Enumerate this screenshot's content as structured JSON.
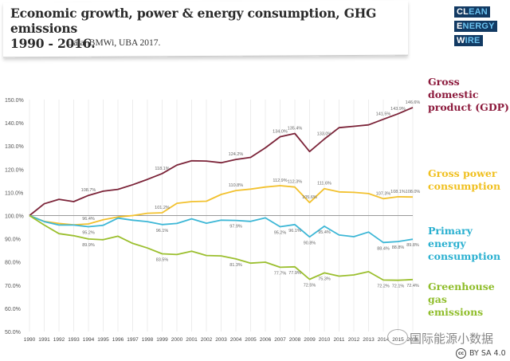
{
  "header": {
    "title_line1": "Economic growth, power & energy consumption, GHG emissions",
    "title_line2": "1990 - 2016.",
    "source": "Data: BMWi, UBA 2017.",
    "logo": [
      {
        "bold": "CL",
        "light": "EAN"
      },
      {
        "bold": "E",
        "light": "NERGY"
      },
      {
        "bold": "W",
        "light": "IRE"
      }
    ]
  },
  "watermark": "国际能源小数据",
  "license": "BY SA 4.0",
  "license_icon": "cc-icon",
  "chart_data": {
    "type": "line",
    "title": "Economic growth, power & energy consumption, GHG emissions 1990 - 2016.",
    "xlabel": "",
    "ylabel": "",
    "x": [
      1990,
      1991,
      1992,
      1993,
      1994,
      1995,
      1996,
      1997,
      1998,
      1999,
      2000,
      2001,
      2002,
      2003,
      2004,
      2005,
      2006,
      2007,
      2008,
      2009,
      2010,
      2011,
      2012,
      2013,
      2014,
      2015,
      2016
    ],
    "x_tick_labels": [
      "1990",
      "1991",
      "1992",
      "1993",
      "1994",
      "1995",
      "1996",
      "1997",
      "1998",
      "1999",
      "2000",
      "2001",
      "2002",
      "2003",
      "2004",
      "2005",
      "2006",
      "2007",
      "2008",
      "2009",
      "2010",
      "2011",
      "2012",
      "2013",
      "2014",
      "2015",
      "2016"
    ],
    "ylim": [
      50,
      150
    ],
    "y_ticks": [
      50,
      60,
      70,
      80,
      90,
      100,
      110,
      120,
      130,
      140,
      150
    ],
    "y_tick_labels": [
      "50.0%",
      "60.0%",
      "70.0%",
      "80.0%",
      "90.0%",
      "100.0%",
      "110.0%",
      "120.0%",
      "130.0%",
      "140.0%",
      "150.0%"
    ],
    "grid": "vertical",
    "baseline": 100,
    "legend_placement": "right",
    "series": [
      {
        "name": "Gross domestic product (GDP)",
        "legend_lines": [
          "Gross domestic",
          "product (GDP)"
        ],
        "color": "#7b2338",
        "legend_color": "#8c1a3c",
        "values": [
          100,
          105.1,
          107.0,
          106.0,
          108.7,
          110.5,
          111.3,
          113.3,
          115.6,
          118.1,
          121.8,
          123.6,
          123.5,
          122.8,
          124.2,
          125.1,
          129.2,
          134.0,
          135.4,
          127.6,
          133.0,
          137.9,
          138.5,
          139.1,
          141.5,
          143.9,
          146.6
        ],
        "labels": [
          {
            "year": 1994,
            "text": "108.7%"
          },
          {
            "year": 1999,
            "text": "118.1%"
          },
          {
            "year": 2004,
            "text": "124.2%"
          },
          {
            "year": 2007,
            "text": "134.0%"
          },
          {
            "year": 2008,
            "text": "135.4%"
          },
          {
            "year": 2010,
            "text": "133.0%"
          },
          {
            "year": 2014,
            "text": "141.5%"
          },
          {
            "year": 2015,
            "text": "143.9%"
          },
          {
            "year": 2016,
            "text": "146.6%"
          }
        ]
      },
      {
        "name": "Gross power consumption",
        "legend_lines": [
          "Gross power",
          "consumption"
        ],
        "color": "#f2c12e",
        "legend_color": "#f0c020",
        "values": [
          100,
          97.5,
          96.6,
          96.0,
          96.4,
          98.2,
          99.4,
          100.0,
          101.0,
          101.2,
          105.3,
          106.0,
          106.2,
          109.1,
          110.8,
          111.4,
          112.3,
          112.9,
          112.3,
          105.6,
          111.6,
          110.2,
          110.0,
          109.5,
          107.3,
          108.1,
          108.0
        ],
        "labels": [
          {
            "year": 1994,
            "text": "96.4%"
          },
          {
            "year": 1999,
            "text": "101.2%"
          },
          {
            "year": 2004,
            "text": "110.8%"
          },
          {
            "year": 2007,
            "text": "112.9%"
          },
          {
            "year": 2008,
            "text": "112.3%"
          },
          {
            "year": 2009,
            "text": "105.6%"
          },
          {
            "year": 2010,
            "text": "111.6%"
          },
          {
            "year": 2014,
            "text": "107.3%"
          },
          {
            "year": 2015,
            "text": "108.1%"
          },
          {
            "year": 2016,
            "text": "108.0%"
          }
        ]
      },
      {
        "name": "Primary energy consumption",
        "legend_lines": [
          "Primary energy",
          "consumption"
        ],
        "color": "#3db7d6",
        "legend_color": "#2ab0d0",
        "values": [
          100,
          97.4,
          95.9,
          95.9,
          95.2,
          95.8,
          98.9,
          98.0,
          97.4,
          96.1,
          96.6,
          98.6,
          96.7,
          98.0,
          97.9,
          97.5,
          99.0,
          95.2,
          96.1,
          90.8,
          95.4,
          91.6,
          90.9,
          92.9,
          88.4,
          88.8,
          89.8
        ],
        "labels": [
          {
            "year": 1994,
            "text": "95.2%"
          },
          {
            "year": 1999,
            "text": "96.1%"
          },
          {
            "year": 2004,
            "text": "97.9%"
          },
          {
            "year": 2007,
            "text": "95.2%"
          },
          {
            "year": 2008,
            "text": "96.1%"
          },
          {
            "year": 2009,
            "text": "90.8%"
          },
          {
            "year": 2010,
            "text": "95.4%"
          },
          {
            "year": 2014,
            "text": "88.4%"
          },
          {
            "year": 2015,
            "text": "88.8%"
          },
          {
            "year": 2016,
            "text": "89.8%"
          }
        ]
      },
      {
        "name": "Greenhouse gas emissions",
        "legend_lines": [
          "Greenhouse gas",
          "emissions"
        ],
        "color": "#9bbf2e",
        "legend_color": "#8fbd2a",
        "values": [
          100,
          95.9,
          92.2,
          91.3,
          89.9,
          89.6,
          91.1,
          88.0,
          86.0,
          83.5,
          83.2,
          84.6,
          82.8,
          82.6,
          81.3,
          79.5,
          79.9,
          77.7,
          77.9,
          72.5,
          75.3,
          73.9,
          74.4,
          75.8,
          72.2,
          72.1,
          72.4
        ],
        "labels": [
          {
            "year": 1994,
            "text": "89.9%"
          },
          {
            "year": 1999,
            "text": "83.5%"
          },
          {
            "year": 2004,
            "text": "81.3%"
          },
          {
            "year": 2007,
            "text": "77.7%"
          },
          {
            "year": 2008,
            "text": "77.9%"
          },
          {
            "year": 2009,
            "text": "72.5%"
          },
          {
            "year": 2010,
            "text": "75.3%"
          },
          {
            "year": 2014,
            "text": "72.2%"
          },
          {
            "year": 2015,
            "text": "72.1%"
          },
          {
            "year": 2016,
            "text": "72.4%"
          }
        ]
      }
    ]
  }
}
